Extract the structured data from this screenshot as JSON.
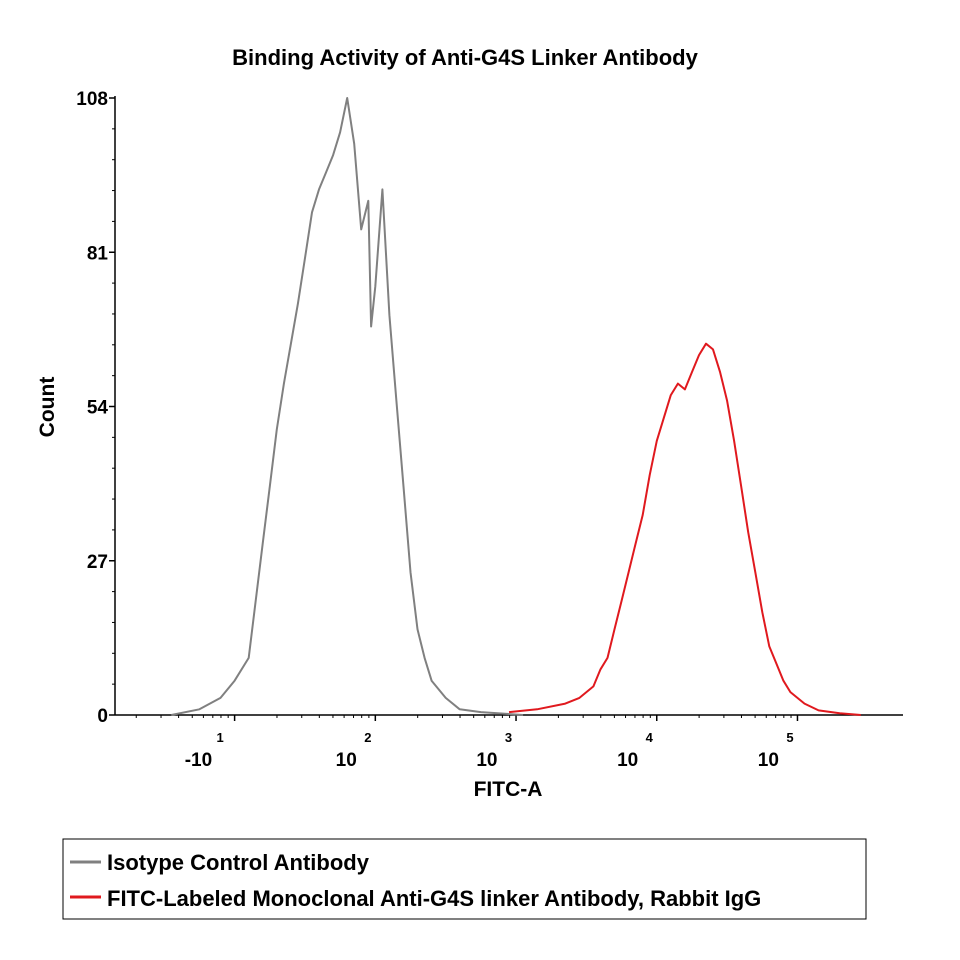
{
  "chart_data": {
    "type": "line",
    "title": "Binding Activity of Anti-G4S Linker Antibody",
    "xlabel": "FITC-A",
    "ylabel": "Count",
    "xscale": "log",
    "ylim": [
      0,
      108
    ],
    "y_ticks": [
      {
        "value": 0,
        "label": "0"
      },
      {
        "value": 27,
        "label": "27"
      },
      {
        "value": 54,
        "label": "54"
      },
      {
        "value": 81,
        "label": "81"
      },
      {
        "value": 108,
        "label": "108"
      }
    ],
    "x_ticks": [
      {
        "label": "-10",
        "exponent": "1"
      },
      {
        "label": "10",
        "exponent": "2"
      },
      {
        "label": "10",
        "exponent": "3"
      },
      {
        "label": "10",
        "exponent": "4"
      },
      {
        "label": "10",
        "exponent": "5"
      }
    ],
    "legend_position": "bottom",
    "series": [
      {
        "name": "Isotype Control Antibody",
        "color": "#808080",
        "points": [
          [
            1.0,
            0
          ],
          [
            1.2,
            1
          ],
          [
            1.35,
            3
          ],
          [
            1.45,
            6
          ],
          [
            1.55,
            10
          ],
          [
            1.6,
            20
          ],
          [
            1.65,
            30
          ],
          [
            1.7,
            40
          ],
          [
            1.75,
            50
          ],
          [
            1.8,
            58
          ],
          [
            1.85,
            65
          ],
          [
            1.9,
            72
          ],
          [
            1.95,
            80
          ],
          [
            2.0,
            88
          ],
          [
            2.05,
            92
          ],
          [
            2.1,
            95
          ],
          [
            2.15,
            98
          ],
          [
            2.2,
            102
          ],
          [
            2.25,
            108
          ],
          [
            2.3,
            100
          ],
          [
            2.35,
            85
          ],
          [
            2.4,
            90
          ],
          [
            2.42,
            68
          ],
          [
            2.45,
            75
          ],
          [
            2.5,
            92
          ],
          [
            2.55,
            70
          ],
          [
            2.6,
            55
          ],
          [
            2.65,
            40
          ],
          [
            2.7,
            25
          ],
          [
            2.75,
            15
          ],
          [
            2.8,
            10
          ],
          [
            2.85,
            6
          ],
          [
            2.95,
            3
          ],
          [
            3.05,
            1
          ],
          [
            3.2,
            0.5
          ],
          [
            3.5,
            0
          ]
        ]
      },
      {
        "name": "FITC-Labeled Monoclonal Anti-G4S linker Antibody, Rabbit IgG",
        "color": "#e0191e",
        "points": [
          [
            3.4,
            0.5
          ],
          [
            3.6,
            1
          ],
          [
            3.8,
            2
          ],
          [
            3.9,
            3
          ],
          [
            4.0,
            5
          ],
          [
            4.05,
            8
          ],
          [
            4.1,
            10
          ],
          [
            4.15,
            15
          ],
          [
            4.2,
            20
          ],
          [
            4.25,
            25
          ],
          [
            4.3,
            30
          ],
          [
            4.35,
            35
          ],
          [
            4.4,
            42
          ],
          [
            4.45,
            48
          ],
          [
            4.5,
            52
          ],
          [
            4.55,
            56
          ],
          [
            4.6,
            58
          ],
          [
            4.65,
            57
          ],
          [
            4.7,
            60
          ],
          [
            4.75,
            63
          ],
          [
            4.8,
            65
          ],
          [
            4.85,
            64
          ],
          [
            4.9,
            60
          ],
          [
            4.95,
            55
          ],
          [
            5.0,
            48
          ],
          [
            5.05,
            40
          ],
          [
            5.1,
            32
          ],
          [
            5.15,
            25
          ],
          [
            5.2,
            18
          ],
          [
            5.25,
            12
          ],
          [
            5.3,
            9
          ],
          [
            5.35,
            6
          ],
          [
            5.4,
            4
          ],
          [
            5.5,
            2
          ],
          [
            5.6,
            0.8
          ],
          [
            5.75,
            0.3
          ],
          [
            5.9,
            0
          ]
        ]
      }
    ]
  }
}
